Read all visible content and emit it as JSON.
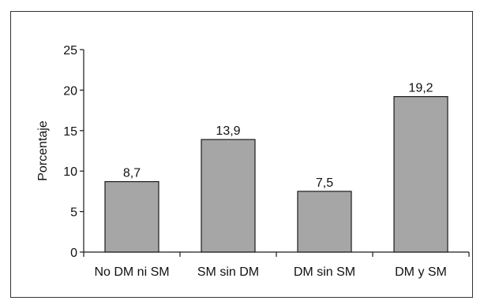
{
  "chart_data": {
    "type": "bar",
    "categories": [
      "No DM ni SM",
      "SM sin DM",
      "DM sin SM",
      "DM y SM"
    ],
    "values": [
      8.7,
      13.9,
      7.5,
      19.2
    ],
    "value_labels": [
      "8,7",
      "13,9",
      "7,5",
      "19,2"
    ],
    "title": "",
    "xlabel": "",
    "ylabel": "Porcentaje",
    "ylim": [
      0,
      25
    ],
    "yticks": [
      0,
      5,
      10,
      15,
      20,
      25
    ],
    "grid": false,
    "legend": "none",
    "colors": {
      "bar_fill": "#a6a6a6",
      "bar_stroke": "#1a1a1a",
      "axis": "#1a1a1a",
      "text": "#111111",
      "frame": "#333333",
      "background": "#ffffff"
    }
  }
}
